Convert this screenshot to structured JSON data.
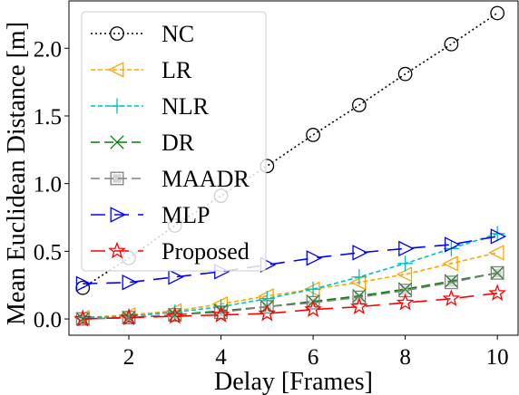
{
  "chart_data": {
    "type": "line",
    "xlabel": "Delay [Frames]",
    "ylabel": "Mean Euclidean Distance [m]",
    "xlim": [
      0.7,
      10.45
    ],
    "ylim": [
      -0.12,
      2.35
    ],
    "xticks": [
      2,
      4,
      6,
      8,
      10
    ],
    "xtick_labels": [
      "2",
      "4",
      "6",
      "8",
      "10"
    ],
    "yticks": [
      0.0,
      0.5,
      1.0,
      1.5,
      2.0
    ],
    "ytick_labels": [
      "0.0",
      "0.5",
      "1.0",
      "1.5",
      "2.0"
    ],
    "grid": false,
    "legend_position": "top-left",
    "x": [
      1,
      2,
      3,
      4,
      5,
      6,
      7,
      8,
      9,
      10
    ],
    "series": [
      {
        "name": "NC",
        "color": "#000000",
        "dash": "dotted",
        "marker": "circle",
        "values": [
          0.23,
          0.45,
          0.69,
          0.91,
          1.13,
          1.36,
          1.58,
          1.81,
          2.03,
          2.26
        ]
      },
      {
        "name": "LR",
        "color": "#FFA500",
        "dash": "dashed-fine",
        "marker": "triangle-left",
        "values": [
          0.01,
          0.03,
          0.06,
          0.11,
          0.17,
          0.22,
          0.27,
          0.33,
          0.41,
          0.49
        ]
      },
      {
        "name": "NLR",
        "color": "#00BFBF",
        "dash": "dashed-fine",
        "marker": "plus",
        "values": [
          0.01,
          0.02,
          0.05,
          0.09,
          0.15,
          0.22,
          0.31,
          0.41,
          0.52,
          0.63
        ]
      },
      {
        "name": "DR",
        "color": "#008000",
        "dash": "dashed",
        "marker": "x",
        "values": [
          0.0,
          0.01,
          0.03,
          0.06,
          0.09,
          0.13,
          0.17,
          0.22,
          0.28,
          0.34
        ]
      },
      {
        "name": "MAADR",
        "color": "#808080",
        "dash": "dashed",
        "marker": "square",
        "values": [
          0.0,
          0.01,
          0.03,
          0.05,
          0.09,
          0.12,
          0.16,
          0.21,
          0.27,
          0.34
        ]
      },
      {
        "name": "MLP",
        "color": "#0000FF",
        "dash": "dashed-long",
        "marker": "triangle-right",
        "values": [
          0.26,
          0.27,
          0.31,
          0.35,
          0.4,
          0.45,
          0.49,
          0.52,
          0.55,
          0.61
        ]
      },
      {
        "name": "Proposed",
        "color": "#FF0000",
        "dash": "dashed-long",
        "marker": "star",
        "values": [
          0.0,
          0.01,
          0.02,
          0.03,
          0.04,
          0.07,
          0.09,
          0.12,
          0.15,
          0.19
        ]
      }
    ]
  }
}
